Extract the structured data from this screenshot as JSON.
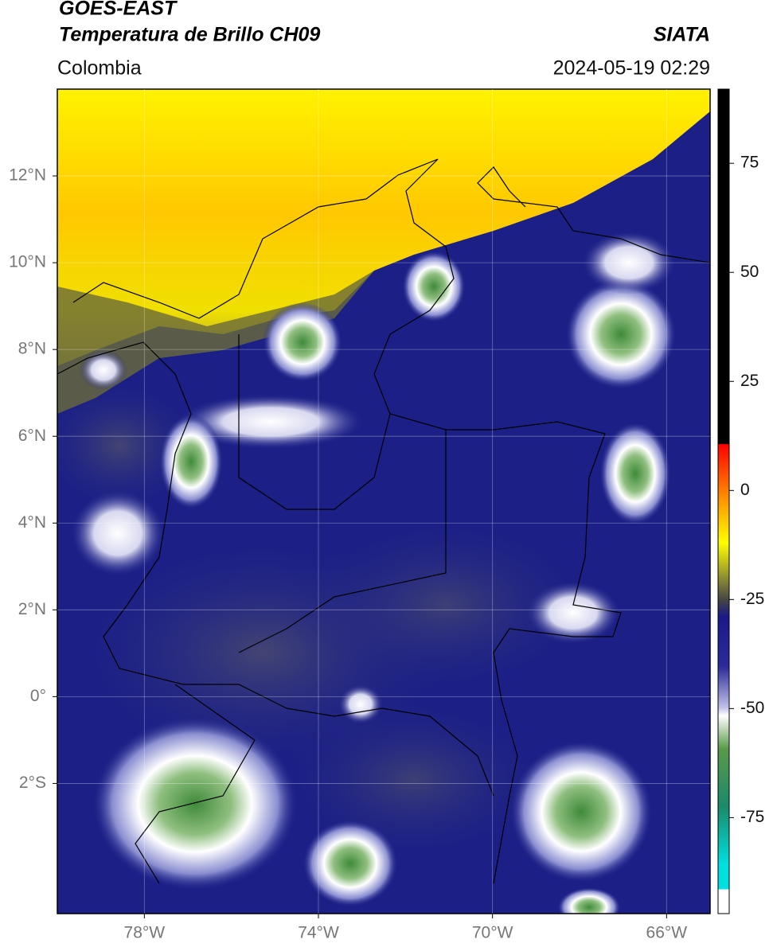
{
  "header": {
    "title": "GOES-EAST",
    "subtitle": "Temperatura de Brillo CH09",
    "source": "SIATA",
    "region": "Colombia",
    "timestamp": "2024-05-19 02:29"
  },
  "map": {
    "xlim": [
      -80,
      -65
    ],
    "ylim": [
      -5,
      14
    ],
    "xticks": [
      {
        "value": -78,
        "label": "78°W"
      },
      {
        "value": -74,
        "label": "74°W"
      },
      {
        "value": -70,
        "label": "70°W"
      },
      {
        "value": -66,
        "label": "66°W"
      }
    ],
    "yticks": [
      {
        "value": -2,
        "label": "2°S"
      },
      {
        "value": 0,
        "label": "0°"
      },
      {
        "value": 2,
        "label": "2°N"
      },
      {
        "value": 4,
        "label": "4°N"
      },
      {
        "value": 6,
        "label": "6°N"
      },
      {
        "value": 8,
        "label": "8°N"
      },
      {
        "value": 10,
        "label": "10°N"
      },
      {
        "value": 12,
        "label": "12°N"
      }
    ],
    "grid": true
  },
  "colorbar": {
    "lim": [
      -97,
      92
    ],
    "ticks": [
      75,
      50,
      25,
      0,
      -25,
      -50,
      -75
    ]
  }
}
